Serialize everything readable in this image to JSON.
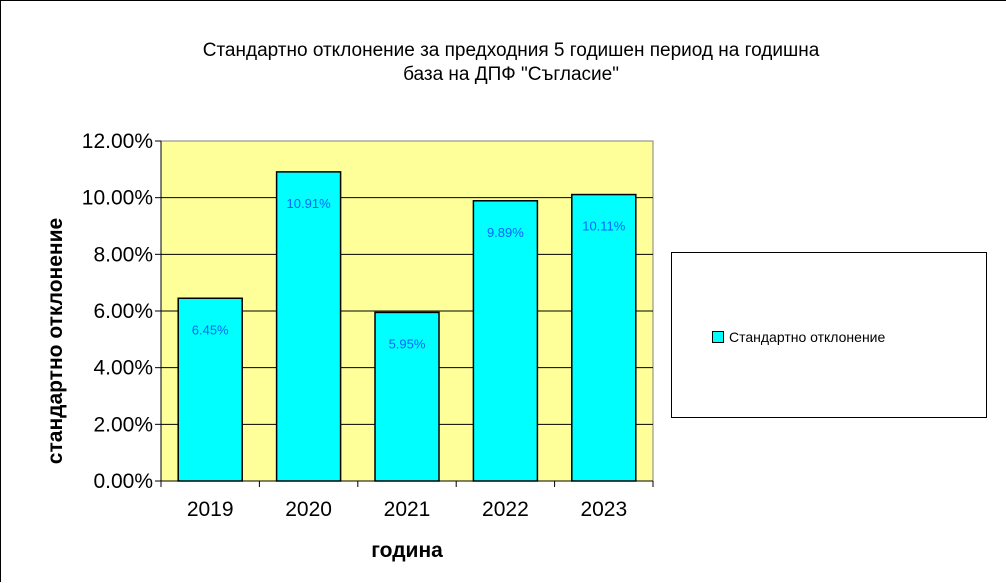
{
  "title": {
    "line1": "Стандартно отклонение за предходния 5 годишен период на годишна",
    "line2": "база на ДПФ \"Съгласие\""
  },
  "colors": {
    "plot_bg": "#ffff99",
    "bar": "#00ffff",
    "data_label": "#0066ff"
  },
  "chart_data": {
    "type": "bar",
    "title": "Стандартно отклонение за предходния 5 годишен период на годишна база на ДПФ \"Съгласие\"",
    "xlabel": "година",
    "ylabel": "стандартно отклонение",
    "categories": [
      "2019",
      "2020",
      "2021",
      "2022",
      "2023"
    ],
    "series": [
      {
        "name": "Стандартно отклонение",
        "values": [
          6.45,
          10.91,
          5.95,
          9.89,
          10.11
        ],
        "labels": [
          "6.45%",
          "10.91%",
          "5.95%",
          "9.89%",
          "10.11%"
        ]
      }
    ],
    "ylim": [
      0,
      12
    ],
    "yticks": [
      "0.00%",
      "2.00%",
      "4.00%",
      "6.00%",
      "8.00%",
      "10.00%",
      "12.00%"
    ],
    "grid": true,
    "legend_position": "right"
  }
}
